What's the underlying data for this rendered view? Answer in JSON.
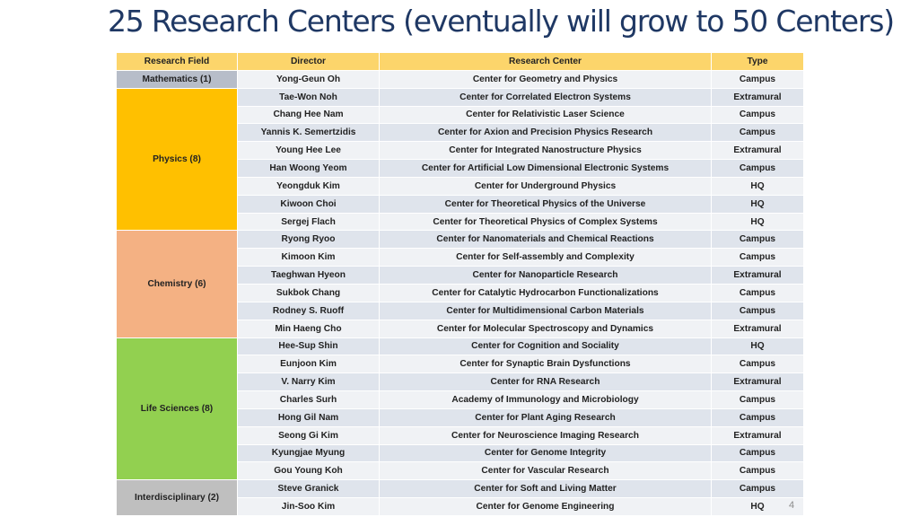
{
  "title": "25 Research Centers (eventually will grow to 50 Centers)",
  "page_number": "4",
  "columns": [
    "Research Field",
    "Director",
    "Research Center",
    "Type"
  ],
  "groups": [
    {
      "label": "Mathematics (1)",
      "color": "#b7bdc9",
      "rows": [
        {
          "director": "Yong-Geun Oh",
          "center": "Center for Geometry and Physics",
          "type": "Campus"
        }
      ]
    },
    {
      "label": "Physics (8)",
      "color": "#ffc000",
      "rows": [
        {
          "director": "Tae-Won Noh",
          "center": "Center for Correlated Electron Systems",
          "type": "Extramural"
        },
        {
          "director": "Chang Hee Nam",
          "center": "Center for Relativistic Laser Science",
          "type": "Campus"
        },
        {
          "director": "Yannis K. Semertzidis",
          "center": "Center for Axion and Precision Physics Research",
          "type": "Campus"
        },
        {
          "director": "Young Hee Lee",
          "center": "Center for Integrated Nanostructure Physics",
          "type": "Extramural"
        },
        {
          "director": "Han Woong Yeom",
          "center": "Center for Artificial Low Dimensional Electronic Systems",
          "type": "Campus"
        },
        {
          "director": "Yeongduk Kim",
          "center": "Center for Underground Physics",
          "type": "HQ"
        },
        {
          "director": "Kiwoon Choi",
          "center": "Center for Theoretical Physics of the Universe",
          "type": "HQ"
        },
        {
          "director": "Sergej Flach",
          "center": "Center for Theoretical Physics of Complex Systems",
          "type": "HQ"
        }
      ]
    },
    {
      "label": "Chemistry (6)",
      "color": "#f4b183",
      "rows": [
        {
          "director": "Ryong Ryoo",
          "center": "Center for Nanomaterials and Chemical Reactions",
          "type": "Campus"
        },
        {
          "director": "Kimoon Kim",
          "center": "Center for Self-assembly and Complexity",
          "type": "Campus"
        },
        {
          "director": "Taeghwan Hyeon",
          "center": "Center for Nanoparticle Research",
          "type": "Extramural"
        },
        {
          "director": "Sukbok Chang",
          "center": "Center for Catalytic Hydrocarbon Functionalizations",
          "type": "Campus"
        },
        {
          "director": "Rodney S. Ruoff",
          "center": "Center for Multidimensional Carbon Materials",
          "type": "Campus"
        },
        {
          "director": "Min Haeng Cho",
          "center": "Center for Molecular Spectroscopy and Dynamics",
          "type": "Extramural"
        }
      ]
    },
    {
      "label": "Life  Sciences (8)",
      "color": "#92d050",
      "rows": [
        {
          "director": "Hee-Sup Shin",
          "center": "Center for Cognition and Sociality",
          "type": "HQ"
        },
        {
          "director": "Eunjoon Kim",
          "center": "Center for Synaptic Brain Dysfunctions",
          "type": "Campus"
        },
        {
          "director": "V. Narry Kim",
          "center": "Center for RNA Research",
          "type": "Extramural"
        },
        {
          "director": "Charles Surh",
          "center": "Academy of Immunology and Microbiology",
          "type": "Campus"
        },
        {
          "director": "Hong Gil Nam",
          "center": "Center for Plant Aging Research",
          "type": "Campus"
        },
        {
          "director": "Seong Gi Kim",
          "center": "Center for Neuroscience Imaging Research",
          "type": "Extramural"
        },
        {
          "director": "Kyungjae Myung",
          "center": "Center for Genome Integrity",
          "type": "Campus"
        },
        {
          "director": "Gou Young Koh",
          "center": "Center for Vascular Research",
          "type": "Campus"
        }
      ]
    },
    {
      "label": "Interdisciplinary (2)",
      "color": "#bfbfbf",
      "rows": [
        {
          "director": "Steve Granick",
          "center": "Center for Soft and Living Matter",
          "type": "Campus"
        },
        {
          "director": "Jin-Soo Kim",
          "center": "Center for Genome Engineering",
          "type": "HQ"
        }
      ]
    }
  ]
}
